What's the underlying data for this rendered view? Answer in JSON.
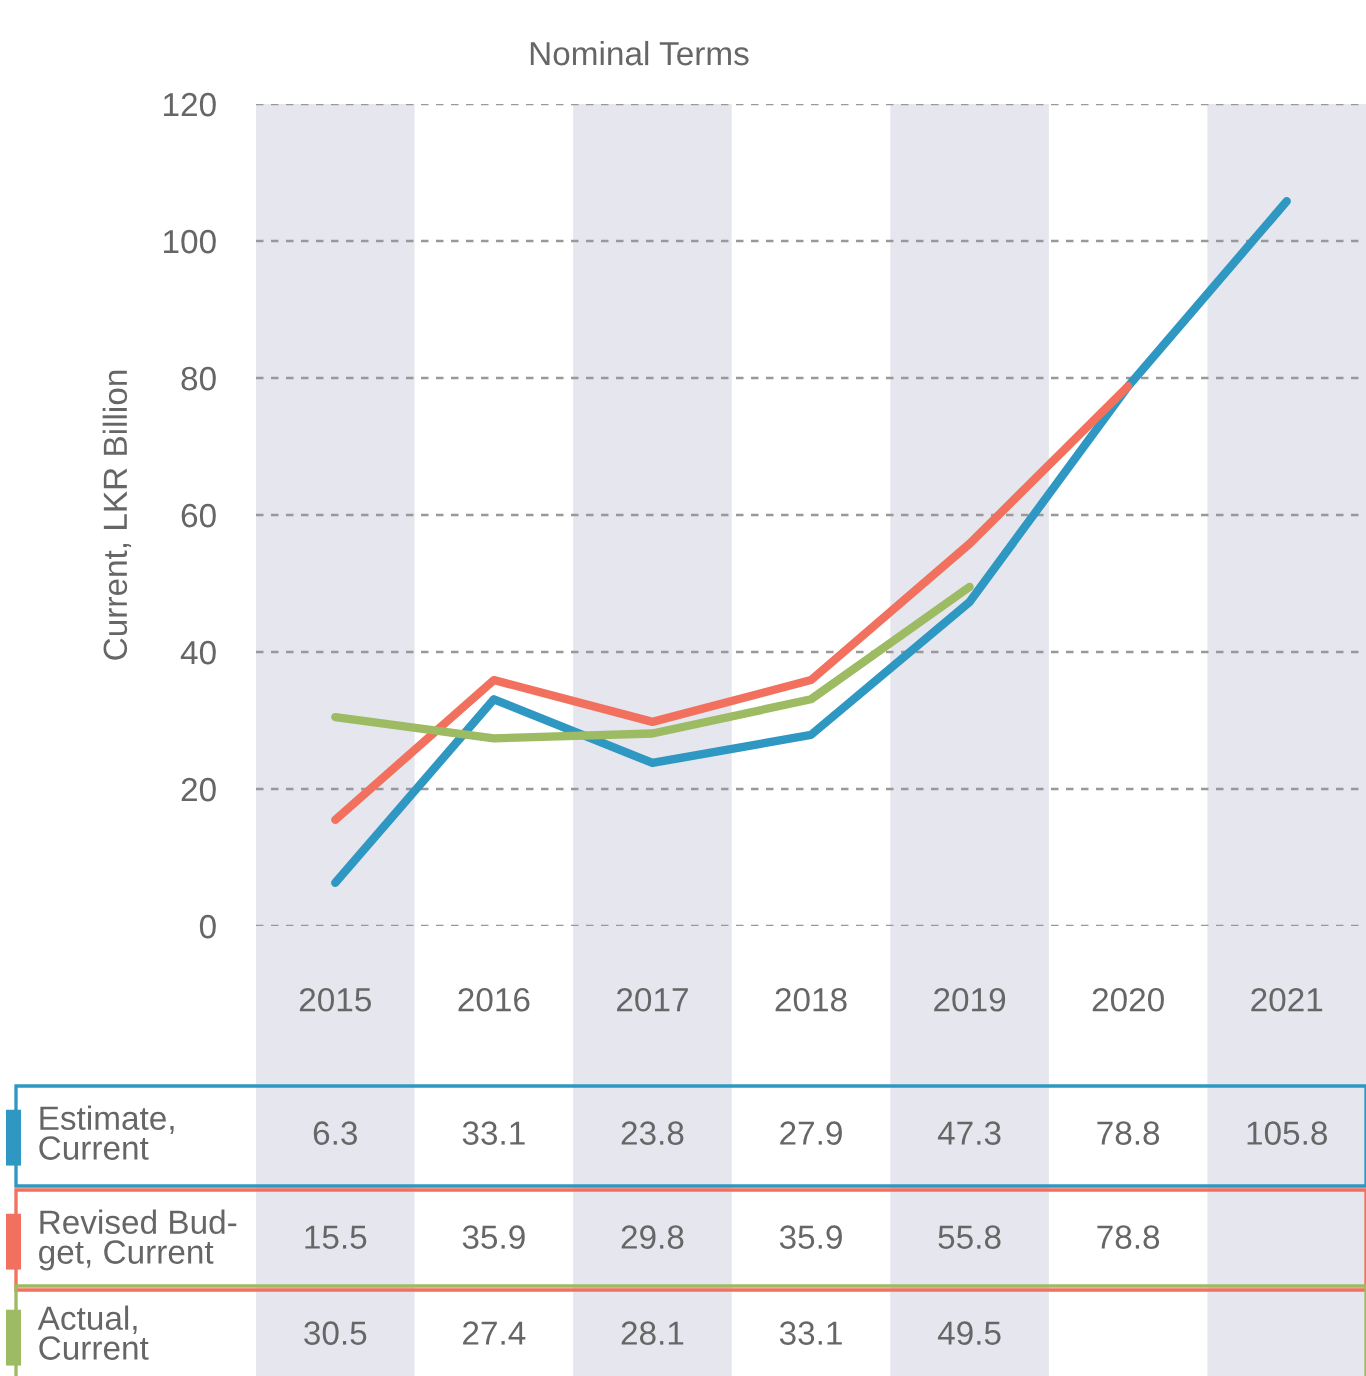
{
  "chart_data": {
    "type": "line",
    "title": "Nominal Terms",
    "ylabel": "Current, LKR Billion",
    "categories": [
      "2015",
      "2016",
      "2017",
      "2018",
      "2019",
      "2020",
      "2021"
    ],
    "series": [
      {
        "name": "Estimate,\nCurrent",
        "color": "#2e98c2",
        "values": [
          6.3,
          33.1,
          23.8,
          27.9,
          47.3,
          78.8,
          105.8
        ]
      },
      {
        "name": "Revised Bud-\nget, Current",
        "color": "#f1705e",
        "values": [
          15.5,
          35.9,
          29.8,
          35.9,
          55.8,
          78.8,
          null
        ]
      },
      {
        "name": "Actual,\nCurrent",
        "color": "#9dbb62",
        "values": [
          30.5,
          27.4,
          28.1,
          33.1,
          49.5,
          null,
          null
        ]
      }
    ],
    "ylim": [
      0,
      120
    ],
    "yticks": [
      0,
      20,
      40,
      60,
      80,
      100,
      120
    ],
    "grid": "y",
    "legend": "bottom left",
    "data_labels": true,
    "line_style": "solid",
    "marker": "none"
  }
}
